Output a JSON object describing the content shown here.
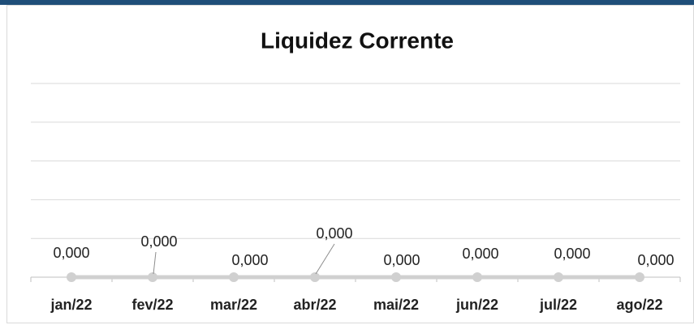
{
  "chart_data": {
    "type": "line",
    "title": "Liquidez Corrente",
    "categories": [
      "jan/22",
      "fev/22",
      "mar/22",
      "abr/22",
      "mai/22",
      "jun/22",
      "jul/22",
      "ago/22"
    ],
    "series": [
      {
        "name": "Liquidez Corrente",
        "color": "#d0d0d0",
        "values": [
          0,
          0,
          0,
          0,
          0,
          0,
          0,
          0
        ],
        "value_labels": [
          "0,000",
          "0,000",
          "0,000",
          "0,000",
          "0,000",
          "0,000",
          "0,000",
          "0,000"
        ]
      }
    ],
    "ylim": [
      0,
      1
    ],
    "yticks": [
      0,
      0.2,
      0.4,
      0.6,
      0.8,
      1
    ],
    "grid": true
  }
}
